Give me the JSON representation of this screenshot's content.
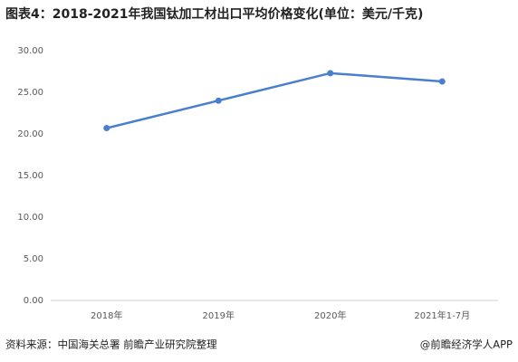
{
  "chart_data": {
    "type": "line",
    "title": "图表4：2018-2021年我国钛加工材出口平均价格变化(单位：美元/千克)",
    "categories": [
      "2018年",
      "2019年",
      "2020年",
      "2021年1-7月"
    ],
    "series": [
      {
        "color": "#4a7fd0",
        "values": [
          20.7,
          24.0,
          27.3,
          26.3
        ]
      }
    ],
    "ylim": [
      0,
      30
    ],
    "yticks": [
      {
        "value": 0,
        "label": "0.00"
      },
      {
        "value": 5,
        "label": "5.00"
      },
      {
        "value": 10,
        "label": "10.00"
      },
      {
        "value": 15,
        "label": "15.00"
      },
      {
        "value": 20,
        "label": "20.00"
      },
      {
        "value": 25,
        "label": "25.00"
      },
      {
        "value": 30,
        "label": "30.00"
      }
    ],
    "grid": false,
    "source": "资料来源：中国海关总署 前瞻产业研究院整理",
    "credit": "@前瞻经济学人APP"
  }
}
